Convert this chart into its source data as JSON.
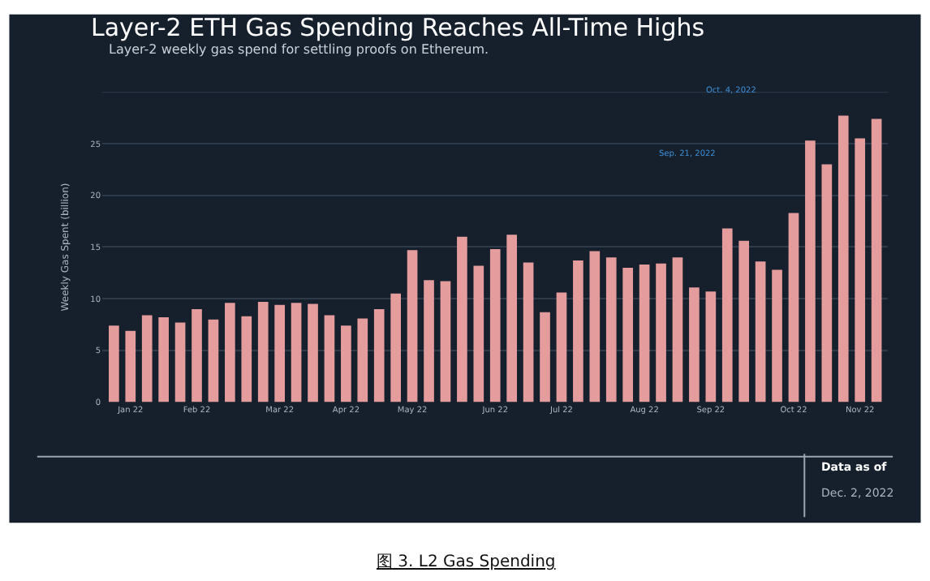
{
  "chart_data": {
    "type": "bar",
    "title": "Layer-2 ETH Gas Spending Reaches All-Time Highs",
    "subtitle": "Layer-2 weekly gas spend for settling proofs on Ethereum.",
    "ylabel": "Weekly Gas Spent (billion)",
    "categories": [
      null,
      "Jan 22",
      null,
      null,
      null,
      "Feb 22",
      null,
      null,
      null,
      null,
      "Mar 22",
      null,
      null,
      null,
      "Apr 22",
      null,
      null,
      null,
      "May 22",
      null,
      null,
      null,
      null,
      "Jun 22",
      null,
      null,
      null,
      "Jul 22",
      null,
      null,
      null,
      null,
      "Aug 22",
      null,
      null,
      null,
      "Sep 22",
      null,
      null,
      null,
      null,
      "Oct 22",
      null,
      null,
      null,
      "Nov 22",
      null
    ],
    "values": [
      7.4,
      6.9,
      8.4,
      8.2,
      7.7,
      9.0,
      8.0,
      9.6,
      8.3,
      9.7,
      9.4,
      9.6,
      9.5,
      8.4,
      7.4,
      8.1,
      9.0,
      10.5,
      14.7,
      11.8,
      11.7,
      16.0,
      13.2,
      14.8,
      16.2,
      13.5,
      8.7,
      10.6,
      13.7,
      14.6,
      14.0,
      13.0,
      13.3,
      13.4,
      14.0,
      11.1,
      10.7,
      16.8,
      15.6,
      13.6,
      12.8,
      18.3,
      25.3,
      23.0,
      27.7,
      25.5,
      27.4
    ],
    "color": "#e59c9c",
    "ylim": [
      0,
      30
    ],
    "yticks": [
      0,
      5,
      10,
      15,
      20,
      25
    ],
    "grid": "y",
    "legend": false,
    "annotations": [
      "Oct. 4, 2022",
      "Sep. 21, 2022",
      "Data as of",
      "Dec. 2, 2022",
      "图 3. L2 Gas Spending"
    ]
  }
}
